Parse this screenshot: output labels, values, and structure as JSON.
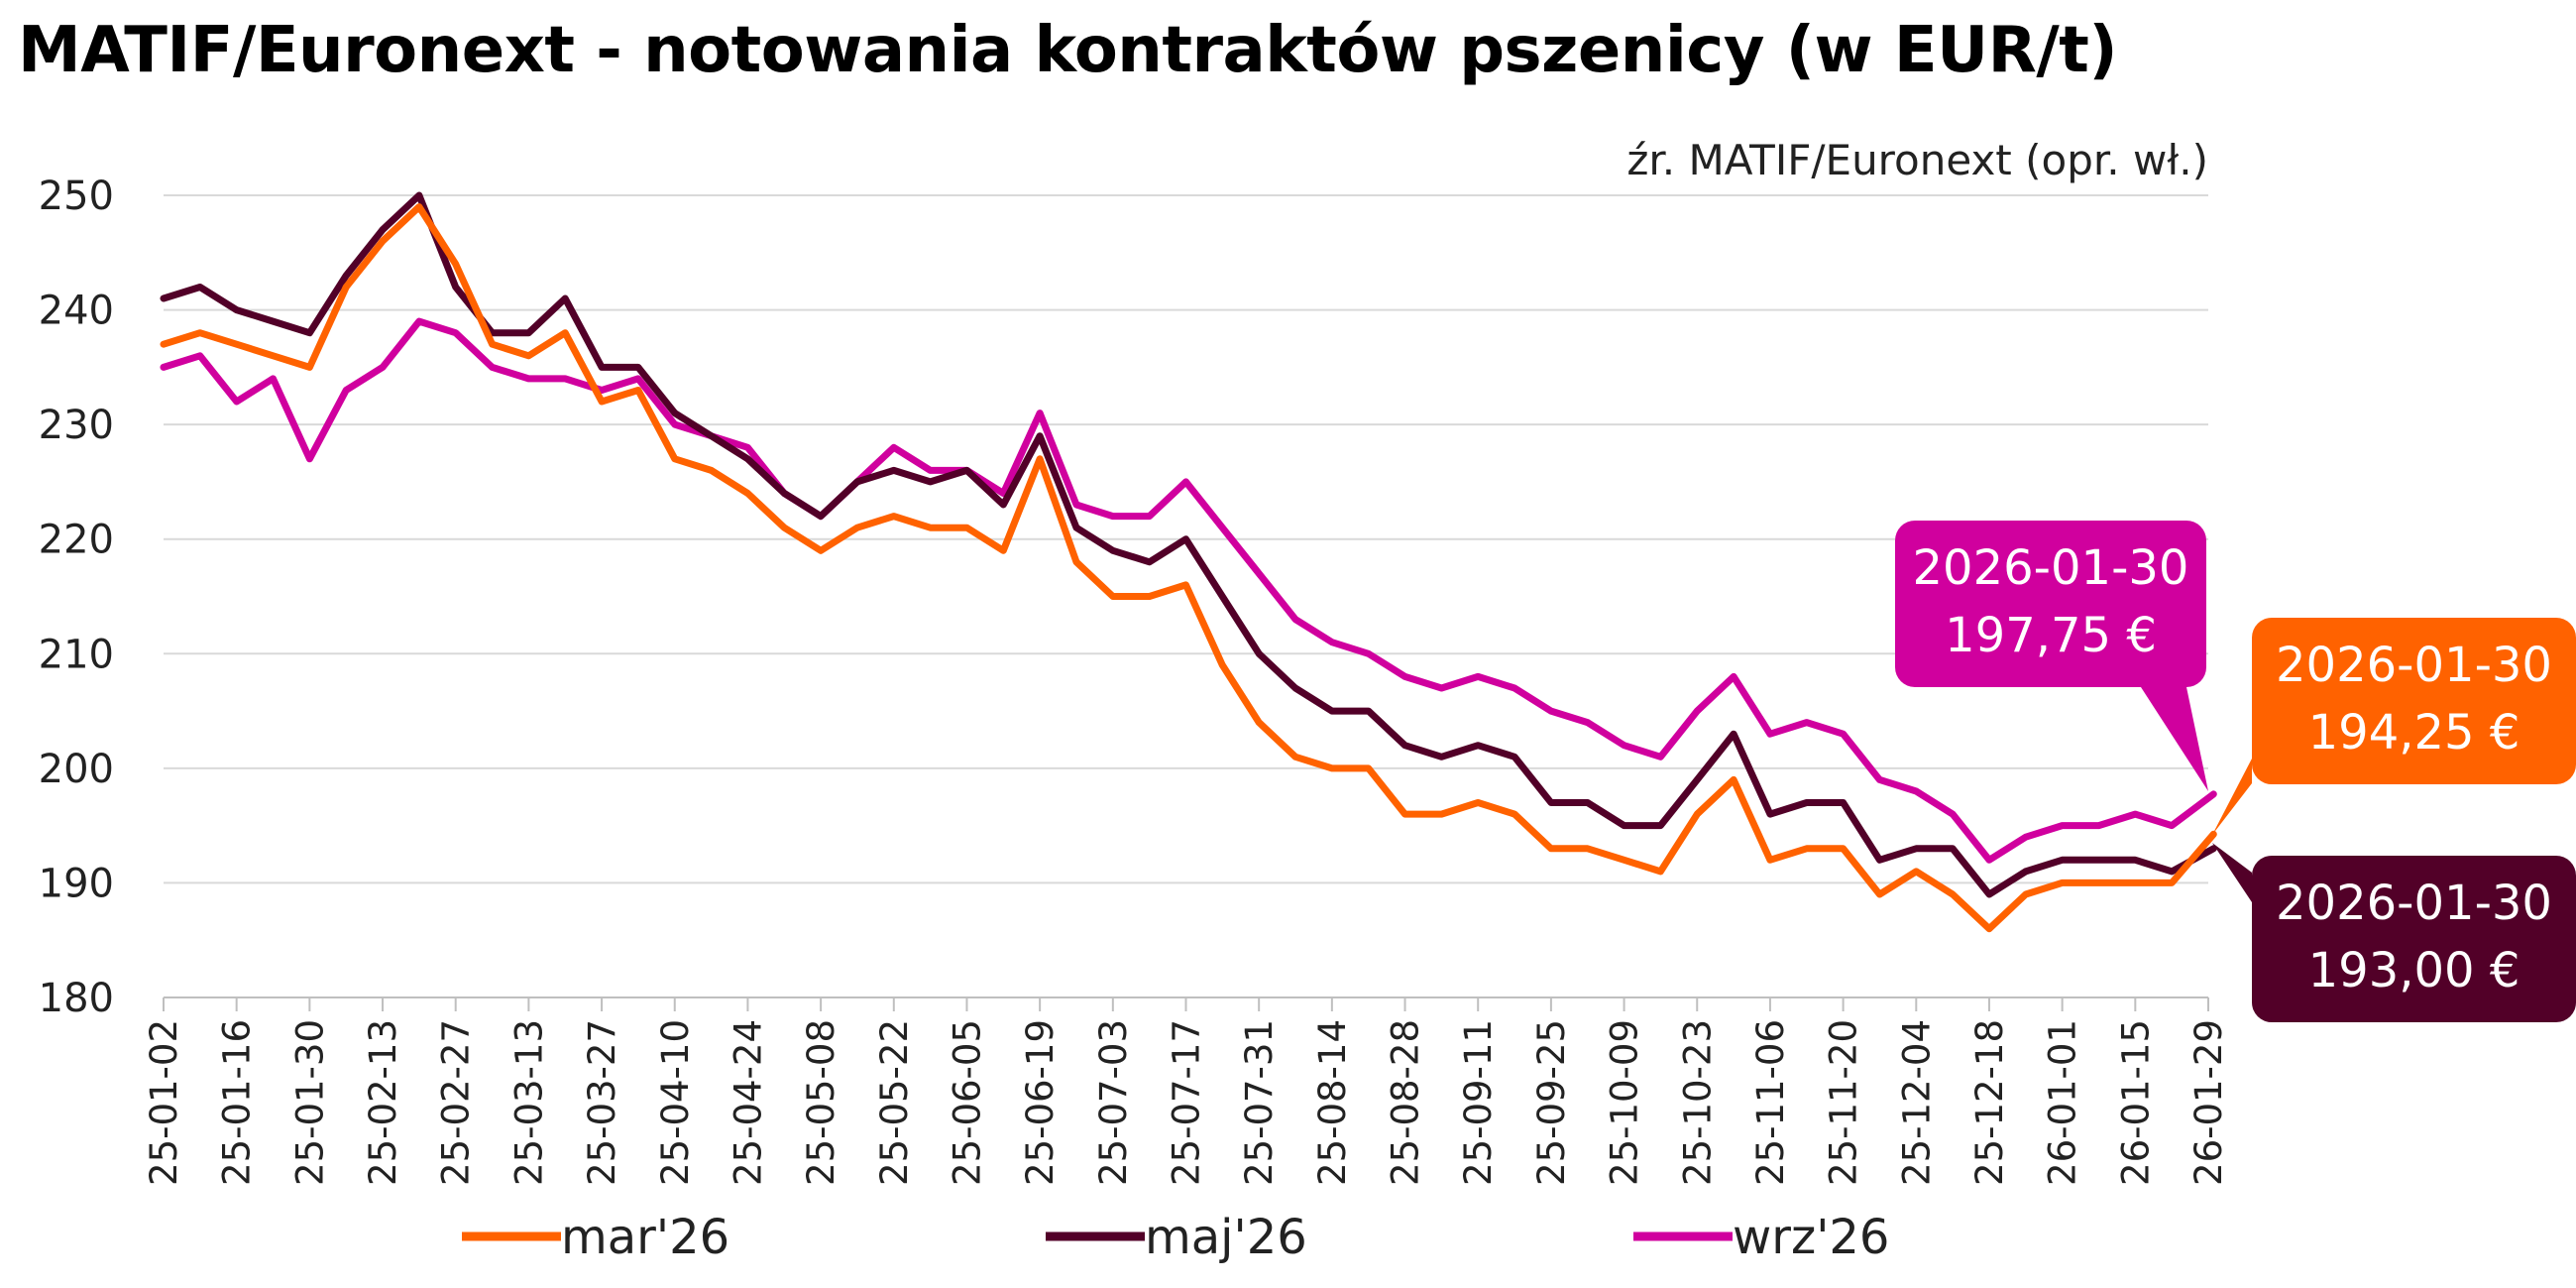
{
  "title": "MATIF/Euronext - notowania kontraktów pszenicy (w EUR/t)",
  "source": "źr. MATIF/Euronext (opr. wł.)",
  "chart_data": {
    "type": "line",
    "title": "MATIF/Euronext - notowania kontraktów pszenicy (w EUR/t)",
    "xlabel": "",
    "ylabel": "",
    "ylim": [
      180,
      250
    ],
    "yticks": [
      180,
      190,
      200,
      210,
      220,
      230,
      240,
      250
    ],
    "grid": "horizontal",
    "legend_position": "bottom",
    "x_ticks": [
      "25-01-02",
      "25-01-16",
      "25-01-30",
      "25-02-13",
      "25-02-27",
      "25-03-13",
      "25-03-27",
      "25-04-10",
      "25-04-24",
      "25-05-08",
      "25-05-22",
      "25-06-05",
      "25-06-19",
      "25-07-03",
      "25-07-17",
      "25-07-31",
      "25-08-14",
      "25-08-28",
      "25-09-11",
      "25-09-25",
      "25-10-09",
      "25-10-23",
      "25-11-06",
      "25-11-20",
      "25-12-04",
      "25-12-18",
      "26-01-01",
      "26-01-15",
      "26-01-29"
    ],
    "x": [
      "25-01-02",
      "25-01-09",
      "25-01-16",
      "25-01-23",
      "25-01-30",
      "25-02-06",
      "25-02-13",
      "25-02-20",
      "25-02-27",
      "25-03-06",
      "25-03-13",
      "25-03-20",
      "25-03-27",
      "25-04-03",
      "25-04-10",
      "25-04-17",
      "25-04-24",
      "25-05-01",
      "25-05-08",
      "25-05-15",
      "25-05-22",
      "25-05-29",
      "25-06-05",
      "25-06-12",
      "25-06-19",
      "25-06-26",
      "25-07-03",
      "25-07-10",
      "25-07-17",
      "25-07-24",
      "25-07-31",
      "25-08-07",
      "25-08-14",
      "25-08-21",
      "25-08-28",
      "25-09-04",
      "25-09-11",
      "25-09-18",
      "25-09-25",
      "25-10-02",
      "25-10-09",
      "25-10-16",
      "25-10-23",
      "25-10-30",
      "25-11-06",
      "25-11-13",
      "25-11-20",
      "25-11-27",
      "25-12-04",
      "25-12-11",
      "25-12-18",
      "25-12-25",
      "26-01-01",
      "26-01-08",
      "26-01-15",
      "26-01-22",
      "26-01-30"
    ],
    "series": [
      {
        "name": "mar'26",
        "color": "#ff6200",
        "values": [
          237,
          238,
          237,
          236,
          235,
          242,
          246,
          249,
          244,
          237,
          236,
          238,
          232,
          233,
          227,
          226,
          224,
          221,
          219,
          221,
          222,
          221,
          221,
          219,
          227,
          218,
          215,
          215,
          216,
          209,
          204,
          201,
          200,
          200,
          196,
          196,
          197,
          196,
          193,
          193,
          192,
          191,
          196,
          199,
          192,
          193,
          193,
          189,
          191,
          189,
          186,
          189,
          190,
          190,
          190,
          190,
          194.25
        ]
      },
      {
        "name": "maj'26",
        "color": "#520028",
        "values": [
          241,
          242,
          240,
          239,
          238,
          243,
          247,
          250,
          242,
          238,
          238,
          241,
          235,
          235,
          231,
          229,
          227,
          224,
          222,
          225,
          226,
          225,
          226,
          223,
          229,
          221,
          219,
          218,
          220,
          215,
          210,
          207,
          205,
          205,
          202,
          201,
          202,
          201,
          197,
          197,
          195,
          195,
          199,
          203,
          196,
          197,
          197,
          192,
          193,
          193,
          189,
          191,
          192,
          192,
          192,
          191,
          193.0
        ]
      },
      {
        "name": "wrz'26",
        "color": "#d0009e",
        "values": [
          235,
          236,
          232,
          234,
          227,
          233,
          235,
          239,
          238,
          235,
          234,
          234,
          233,
          234,
          230,
          229,
          228,
          224,
          222,
          225,
          228,
          226,
          226,
          224,
          231,
          223,
          222,
          222,
          225,
          221,
          217,
          213,
          211,
          210,
          208,
          207,
          208,
          207,
          205,
          204,
          202,
          201,
          205,
          208,
          203,
          204,
          203,
          199,
          198,
          196,
          192,
          194,
          195,
          195,
          196,
          195,
          197.75
        ]
      }
    ],
    "callouts": [
      {
        "series": "wrz'26",
        "date": "2026-01-30",
        "value": "197,75 €",
        "color": "#d0009e"
      },
      {
        "series": "mar'26",
        "date": "2026-01-30",
        "value": "194,25 €",
        "color": "#ff6200"
      },
      {
        "series": "maj'26",
        "date": "2026-01-30",
        "value": "193,00 €",
        "color": "#520028"
      }
    ]
  }
}
